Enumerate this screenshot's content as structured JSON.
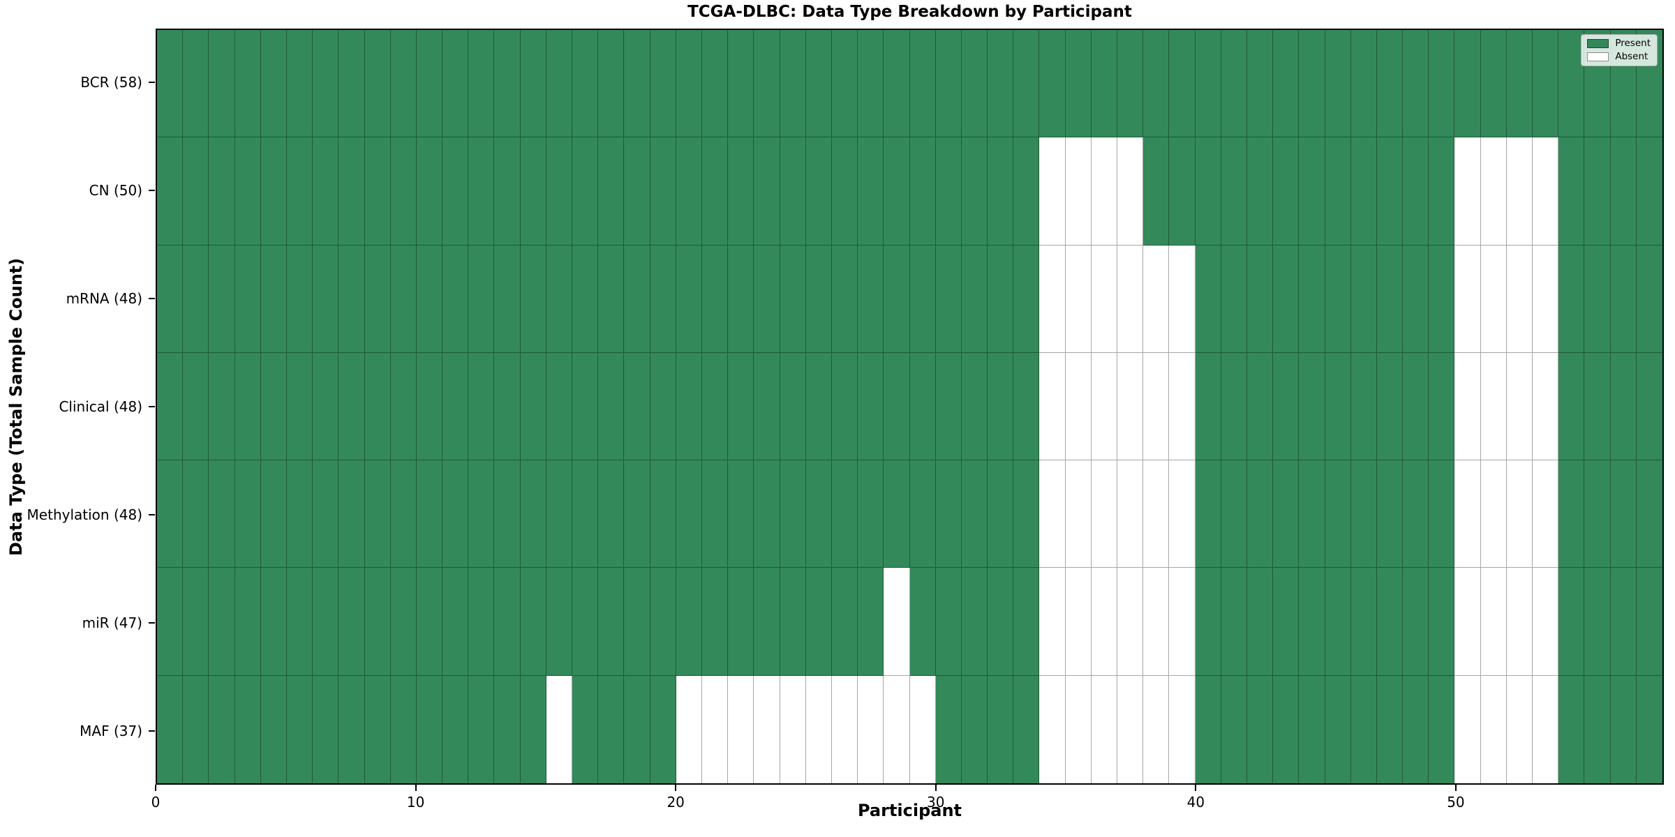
{
  "chart_data": {
    "type": "heatmap",
    "title": "TCGA-DLBC: Data Type Breakdown by Participant",
    "xlabel": "Participant",
    "ylabel": "Data Type (Total Sample Count)",
    "n_participants": 58,
    "x_ticks": [
      0,
      10,
      20,
      30,
      40,
      50
    ],
    "x_range": [
      0,
      58
    ],
    "grid": "cell-edges",
    "rows": [
      {
        "label": "BCR (58)",
        "data_type": "BCR",
        "total": 58,
        "absent_participants": []
      },
      {
        "label": "CN (50)",
        "data_type": "CN",
        "total": 50,
        "absent_participants": [
          34,
          35,
          36,
          37,
          50,
          51,
          52,
          53
        ]
      },
      {
        "label": "mRNA (48)",
        "data_type": "mRNA",
        "total": 48,
        "absent_participants": [
          34,
          35,
          36,
          37,
          38,
          39,
          50,
          51,
          52,
          53
        ]
      },
      {
        "label": "Clinical (48)",
        "data_type": "Clinical",
        "total": 48,
        "absent_participants": [
          34,
          35,
          36,
          37,
          38,
          39,
          50,
          51,
          52,
          53
        ]
      },
      {
        "label": "Methylation (48)",
        "data_type": "Methylation",
        "total": 48,
        "absent_participants": [
          34,
          35,
          36,
          37,
          38,
          39,
          50,
          51,
          52,
          53
        ]
      },
      {
        "label": "miR (47)",
        "data_type": "miR",
        "total": 47,
        "absent_participants": [
          28,
          34,
          35,
          36,
          37,
          38,
          39,
          50,
          51,
          52,
          53
        ]
      },
      {
        "label": "MAF (37)",
        "data_type": "MAF",
        "total": 37,
        "absent_participants": [
          15,
          20,
          21,
          22,
          23,
          24,
          25,
          26,
          27,
          28,
          29,
          34,
          35,
          36,
          37,
          38,
          39,
          50,
          51,
          52,
          53
        ]
      }
    ],
    "legend": {
      "position": "upper-right",
      "entries": [
        {
          "label": "Present",
          "color": "#33895a"
        },
        {
          "label": "Absent",
          "color": "#ffffff"
        }
      ]
    },
    "colors": {
      "present": "#33895a",
      "absent": "#ffffff",
      "cell_edge": "rgba(0,0,0,0.35)",
      "spine": "#000000"
    }
  }
}
